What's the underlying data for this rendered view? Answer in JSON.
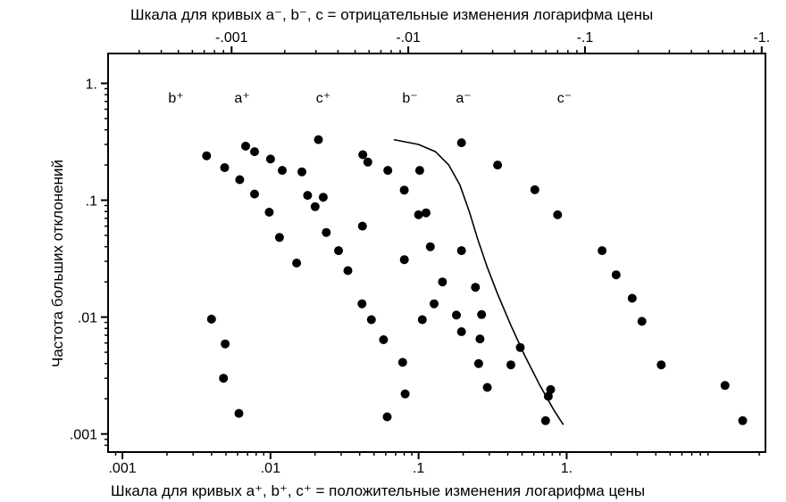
{
  "chart_data": {
    "type": "scatter",
    "title": "",
    "top_axis": {
      "label": "Шкала для кривых a⁻, b⁻, c   = отрицательные изменения логарифма цены",
      "scale": "log",
      "ticks": [
        {
          "value": 0.001,
          "label": "-.001"
        },
        {
          "value": 0.01,
          "label": "-.01"
        },
        {
          "value": 0.1,
          "label": "-.1"
        },
        {
          "value": 1,
          "label": "-1."
        }
      ],
      "range": [
        0.0002,
        1.05
      ]
    },
    "x_axis": {
      "label": "Шкала для кривых a⁺, b⁺, c⁺ = положительные изменения логарифма цены",
      "scale": "log",
      "ticks": [
        {
          "value": 0.001,
          "label": ".001"
        },
        {
          "value": 0.01,
          "label": ".01"
        },
        {
          "value": 0.1,
          "label": ".1"
        },
        {
          "value": 1,
          "label": "1."
        }
      ],
      "range": [
        0.0008,
        22
      ]
    },
    "y_axis": {
      "label": "Частота больших отклонений",
      "scale": "log",
      "ticks": [
        {
          "value": 1,
          "label": "1."
        },
        {
          "value": 0.1,
          "label": ".1"
        },
        {
          "value": 0.01,
          "label": ".01"
        },
        {
          "value": 0.001,
          "label": ".001"
        }
      ],
      "range": [
        0.0007,
        1.8
      ]
    },
    "series": [
      {
        "name": "b⁺",
        "axis": "bottom",
        "points": [
          [
            0.0037,
            0.24
          ],
          [
            0.0049,
            0.19
          ],
          [
            0.0062,
            0.15
          ],
          [
            0.0078,
            0.113
          ],
          [
            0.0098,
            0.079
          ],
          [
            0.0115,
            0.048
          ],
          [
            0.015,
            0.029
          ]
        ]
      },
      {
        "name": "a⁺",
        "axis": "bottom",
        "points": [
          [
            0.0078,
            0.26
          ],
          [
            0.01,
            0.225
          ],
          [
            0.012,
            0.18
          ],
          [
            0.0178,
            0.11
          ],
          [
            0.02,
            0.088
          ],
          [
            0.0238,
            0.053
          ],
          [
            0.0288,
            0.037
          ],
          [
            0.0333,
            0.025
          ],
          [
            0.0415,
            0.013
          ],
          [
            0.048,
            0.0095
          ],
          [
            0.058,
            0.0064
          ],
          [
            0.078,
            0.0041
          ]
        ]
      },
      {
        "name": "c⁺",
        "axis": "bottom",
        "points": [
          [
            0.042,
            0.245
          ],
          [
            0.062,
            0.18
          ],
          [
            0.08,
            0.122
          ],
          [
            0.1,
            0.075
          ],
          [
            0.12,
            0.04
          ],
          [
            0.145,
            0.02
          ],
          [
            0.18,
            0.0104
          ],
          [
            0.26,
            0.0065
          ],
          [
            0.42,
            0.0039
          ],
          [
            0.78,
            0.0024
          ],
          [
            0.72,
            0.0013
          ]
        ]
      },
      {
        "name": "b⁻",
        "axis": "top",
        "points": [
          [
            0.0012,
            0.29
          ],
          [
            0.00077,
            0.0096
          ],
          [
            0.00092,
            0.0059
          ],
          [
            0.0009,
            0.003
          ],
          [
            0.0011,
            0.0015
          ]
        ]
      },
      {
        "name": "a⁻",
        "axis": "top",
        "points": [
          [
            0.0025,
            0.175
          ],
          [
            0.0031,
            0.33
          ],
          [
            0.0033,
            0.106
          ],
          [
            0.0059,
            0.212
          ],
          [
            0.0055,
            0.06
          ],
          [
            0.0116,
            0.18
          ],
          [
            0.0095,
            0.031
          ],
          [
            0.012,
            0.0095
          ],
          [
            0.0096,
            0.0022
          ],
          [
            0.0076,
            0.0014
          ]
        ]
      },
      {
        "name": "c⁻",
        "axis": "top",
        "points": [
          [
            0.02,
            0.31
          ],
          [
            0.032,
            0.2
          ],
          [
            0.052,
            0.123
          ],
          [
            0.07,
            0.075
          ],
          [
            0.125,
            0.037
          ],
          [
            0.15,
            0.023
          ],
          [
            0.185,
            0.0145
          ],
          [
            0.21,
            0.0092
          ],
          [
            0.0126,
            0.078
          ],
          [
            0.014,
            0.013
          ],
          [
            0.02,
            0.0075
          ],
          [
            0.02,
            0.037
          ],
          [
            0.024,
            0.018
          ],
          [
            0.026,
            0.0105
          ],
          [
            0.025,
            0.004
          ],
          [
            0.028,
            0.0025
          ],
          [
            0.043,
            0.0055
          ],
          [
            0.062,
            0.0021
          ],
          [
            0.27,
            0.0039
          ],
          [
            0.62,
            0.0026
          ],
          [
            0.78,
            0.0013
          ]
        ]
      }
    ],
    "curve": {
      "axis": "bottom",
      "points": [
        [
          0.068,
          0.33
        ],
        [
          0.1,
          0.3
        ],
        [
          0.13,
          0.26
        ],
        [
          0.16,
          0.2
        ],
        [
          0.19,
          0.135
        ],
        [
          0.22,
          0.08
        ],
        [
          0.25,
          0.047
        ],
        [
          0.29,
          0.027
        ],
        [
          0.34,
          0.016
        ],
        [
          0.42,
          0.0085
        ],
        [
          0.52,
          0.0047
        ],
        [
          0.66,
          0.0026
        ],
        [
          0.82,
          0.0016
        ],
        [
          0.95,
          0.0012
        ]
      ]
    },
    "grid": false,
    "legend": "none"
  }
}
